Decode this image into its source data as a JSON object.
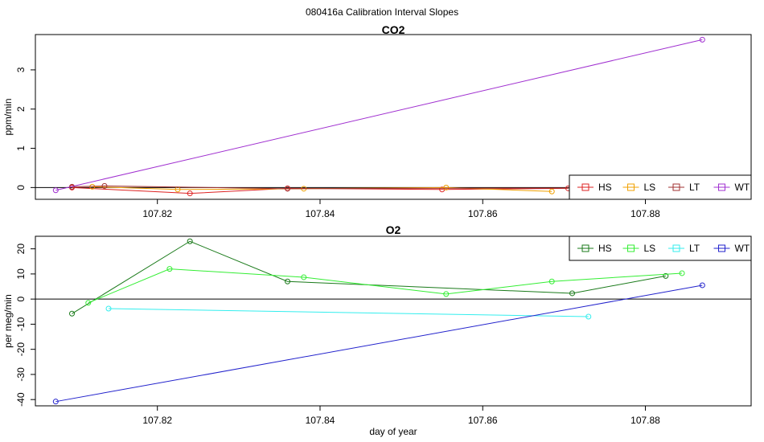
{
  "title": "080416a   Calibration Interval Slopes",
  "chart_data": [
    {
      "type": "line",
      "title": "CO2",
      "xlabel": "",
      "ylabel": "ppm/min",
      "xlim": [
        107.805,
        107.893
      ],
      "ylim": [
        -0.3,
        3.9
      ],
      "x_ticks": [
        107.82,
        107.84,
        107.86,
        107.88
      ],
      "y_ticks": [
        0,
        1,
        2,
        3
      ],
      "hline": 0,
      "legend_position": "bottom-right",
      "series": [
        {
          "name": "HS",
          "color": "#dd2222",
          "x": [
            107.8095,
            107.824,
            107.836,
            107.855,
            107.8705
          ],
          "y": [
            0.0,
            -0.15,
            -0.02,
            -0.05,
            -0.02
          ]
        },
        {
          "name": "LS",
          "color": "#f0a000",
          "x": [
            107.812,
            107.8225,
            107.838,
            107.8555,
            107.8685
          ],
          "y": [
            0.02,
            -0.05,
            -0.03,
            0.0,
            -0.1
          ]
        },
        {
          "name": "LT",
          "color": "#a03030",
          "x": [
            107.8095,
            107.8135,
            107.836,
            107.8725
          ],
          "y": [
            0.02,
            0.04,
            -0.03,
            -0.01
          ]
        },
        {
          "name": "WT",
          "color": "#a030d0",
          "x": [
            107.8075,
            107.887
          ],
          "y": [
            -0.07,
            3.77
          ]
        }
      ]
    },
    {
      "type": "line",
      "title": "O2",
      "xlabel": "day of year",
      "ylabel": "per meg/min",
      "xlim": [
        107.805,
        107.893
      ],
      "ylim": [
        -42.5,
        25
      ],
      "x_ticks": [
        107.82,
        107.84,
        107.86,
        107.88
      ],
      "y_ticks": [
        -40,
        -30,
        -20,
        -10,
        0,
        10,
        20
      ],
      "hline": 0,
      "legend_position": "top-right",
      "series": [
        {
          "name": "HS",
          "color": "#1a7a1a",
          "x": [
            107.8095,
            107.824,
            107.836,
            107.871,
            107.8825
          ],
          "y": [
            -5.8,
            23.0,
            7.0,
            2.3,
            9.2
          ]
        },
        {
          "name": "LS",
          "color": "#33ee33",
          "x": [
            107.8115,
            107.8215,
            107.838,
            107.8555,
            107.8685,
            107.8845
          ],
          "y": [
            -1.5,
            12.0,
            8.7,
            2.0,
            7.0,
            10.3
          ]
        },
        {
          "name": "LT",
          "color": "#33eeee",
          "x": [
            107.814,
            107.873
          ],
          "y": [
            -3.8,
            -7.0
          ]
        },
        {
          "name": "WT",
          "color": "#2222cc",
          "x": [
            107.8075,
            107.887
          ],
          "y": [
            -40.8,
            5.5
          ]
        }
      ]
    }
  ]
}
